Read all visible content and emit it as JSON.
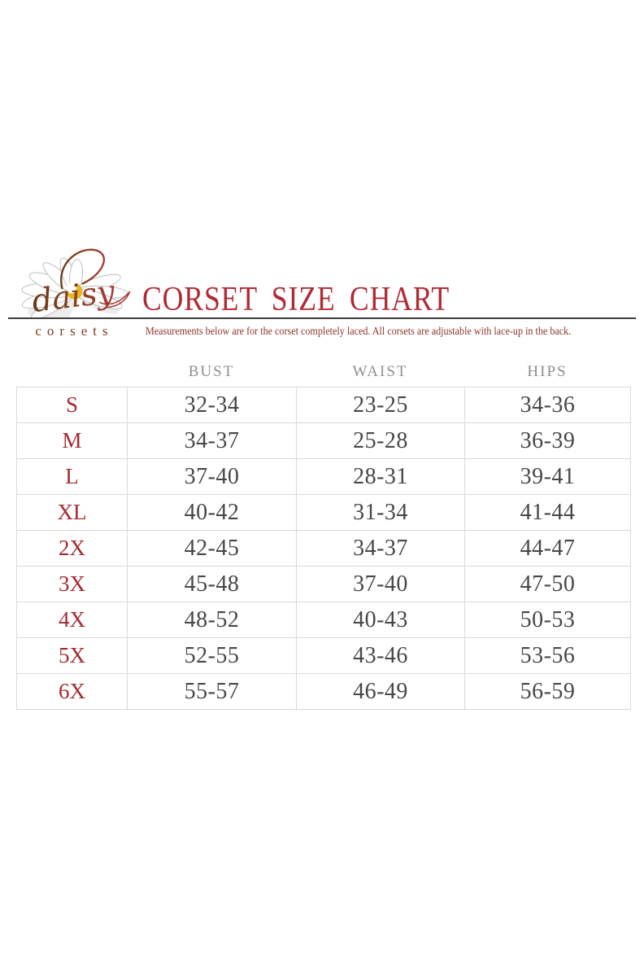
{
  "brand": {
    "script_name": "daisy",
    "wordmark": "corsets"
  },
  "header": {
    "title": "CORSET SIZE CHART",
    "subtitle": "Measurements below are for the corset completely laced.  All corsets are adjustable with lace-up in the back."
  },
  "colors": {
    "background": "#ffffff",
    "title": "#b02b36",
    "subtitle": "#8c352c",
    "rule": "#3d3d3d",
    "wordmark": "#7d3b28",
    "column_header": "#8f8f8f",
    "size_label": "#a52a31",
    "cell_value": "#474747",
    "table_border": "#d9d9d9",
    "script_brown": "#6a3817",
    "script_red": "#a83a33",
    "petal_stroke": "#bdbdbd",
    "flower_center": "#e9b51e"
  },
  "chart_data": {
    "type": "table",
    "title": "CORSET SIZE CHART",
    "columns": [
      "BUST",
      "WAIST",
      "HIPS"
    ],
    "row_labels": [
      "S",
      "M",
      "L",
      "XL",
      "2X",
      "3X",
      "4X",
      "5X",
      "6X"
    ],
    "rows": [
      [
        "32-34",
        "23-25",
        "34-36"
      ],
      [
        "34-37",
        "25-28",
        "36-39"
      ],
      [
        "37-40",
        "28-31",
        "39-41"
      ],
      [
        "40-42",
        "31-34",
        "41-44"
      ],
      [
        "42-45",
        "34-37",
        "44-47"
      ],
      [
        "45-48",
        "37-40",
        "47-50"
      ],
      [
        "48-52",
        "40-43",
        "50-53"
      ],
      [
        "52-55",
        "43-46",
        "53-56"
      ],
      [
        "55-57",
        "46-49",
        "56-59"
      ]
    ]
  }
}
